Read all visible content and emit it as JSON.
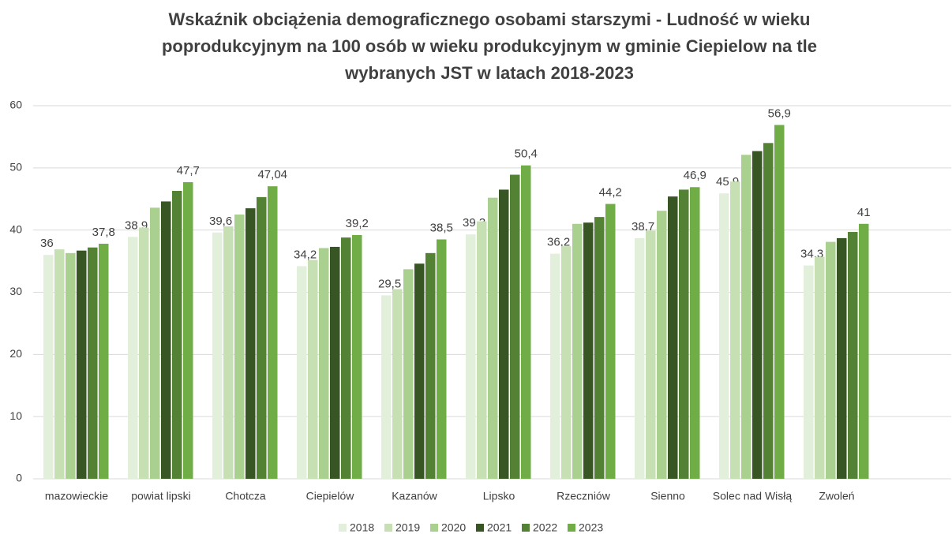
{
  "chart_data": {
    "type": "bar",
    "title": "Wskaźnik obciążenia demograficznego osobami starszymi - Ludność w wieku poprodukcyjnym na 100 osób w wieku produkcyjnym w gminie Ciepielow na tle wybranych JST w latach 2018-2023",
    "categories": [
      "mazowieckie",
      "powiat lipski",
      "Chotcza",
      "Ciepielów",
      "Kazanów",
      "Lipsko",
      "Rzeczniów",
      "Sienno",
      "Solec nad Wisłą",
      "Zwoleń"
    ],
    "series": [
      {
        "name": "2018",
        "color": "#e2efda",
        "values": [
          36,
          38.9,
          39.6,
          34.2,
          29.5,
          39.3,
          36.2,
          38.7,
          45.9,
          34.3
        ],
        "value_labels": [
          "36",
          "38,9",
          "39,6",
          "34,2",
          "29,5",
          "39,3",
          "36,2",
          "38,7",
          "45,9",
          "34,3"
        ]
      },
      {
        "name": "2019",
        "color": "#c6e0b4",
        "values": [
          36.9,
          40.4,
          40.6,
          35.2,
          30.5,
          41.4,
          37.4,
          39.9,
          47.8,
          35.7
        ]
      },
      {
        "name": "2020",
        "color": "#a9d08e",
        "values": [
          36.3,
          43.6,
          42.5,
          37.1,
          33.7,
          45.2,
          41.0,
          43.1,
          52.1,
          38.1
        ]
      },
      {
        "name": "2021",
        "color": "#375623",
        "values": [
          36.7,
          44.6,
          43.5,
          37.3,
          34.6,
          46.5,
          41.2,
          45.4,
          52.7,
          38.7
        ]
      },
      {
        "name": "2022",
        "color": "#548235",
        "values": [
          37.2,
          46.3,
          45.3,
          38.8,
          36.3,
          48.9,
          42.1,
          46.5,
          54.0,
          39.7
        ]
      },
      {
        "name": "2023",
        "color": "#70ad47",
        "values": [
          37.8,
          47.7,
          47.04,
          39.2,
          38.5,
          50.4,
          44.2,
          46.9,
          56.9,
          41
        ],
        "value_labels": [
          "37,8",
          "47,7",
          "47,04",
          "39,2",
          "38,5",
          "50,4",
          "44,2",
          "46,9",
          "56,9",
          "41"
        ]
      }
    ],
    "ylim": [
      0,
      60
    ],
    "yticks": [
      0,
      10,
      20,
      30,
      40,
      50,
      60
    ],
    "grid": true,
    "legend": "bottom"
  }
}
